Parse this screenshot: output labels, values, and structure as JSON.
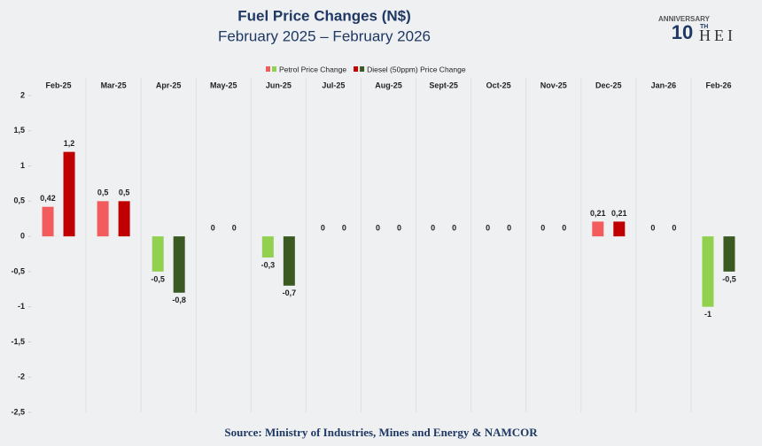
{
  "chart_data": {
    "type": "bar",
    "title": "Fuel Price Changes (N$)",
    "subtitle": "February 2025 – February 2026",
    "source": "Source: Ministry of Industries, Mines and Energy & NAMCOR",
    "categories": [
      "Feb-25",
      "Mar-25",
      "Apr-25",
      "May-25",
      "Jun-25",
      "Jul-25",
      "Aug-25",
      "Sept-25",
      "Oct-25",
      "Nov-25",
      "Dec-25",
      "Jan-26",
      "Feb-26"
    ],
    "series": [
      {
        "name": "Petrol Price Change",
        "color": "#f25c5c",
        "negative_color": "#92d050",
        "values": [
          0.42,
          0.5,
          -0.5,
          0,
          -0.3,
          0,
          0,
          0,
          0,
          0,
          0.21,
          0,
          -1
        ],
        "value_labels": [
          "0,42",
          "0,5",
          "-0,5",
          "0",
          "-0,3",
          "0",
          "0",
          "0",
          "0",
          "0",
          "0,21",
          "0",
          "-1"
        ]
      },
      {
        "name": "Diesel (50ppm) Price Change",
        "color": "#c00000",
        "negative_color": "#3a5a22",
        "values": [
          1.2,
          0.5,
          -0.8,
          0,
          -0.7,
          0,
          0,
          0,
          0,
          0,
          0.21,
          0,
          -0.5
        ],
        "value_labels": [
          "1,2",
          "0,5",
          "-0,8",
          "0",
          "-0,7",
          "0",
          "0",
          "0",
          "0",
          "0",
          "0,21",
          "0",
          "-0,5"
        ]
      }
    ],
    "ylim": [
      -2.5,
      2
    ],
    "yticks": [
      2,
      {
        "value": 1.5,
        "label": "1,5"
      },
      1,
      {
        "value": 0.5,
        "label": "0,5"
      },
      0,
      {
        "value": -0.5,
        "label": "-0,5"
      },
      -1,
      {
        "value": -1.5,
        "label": "-1,5"
      },
      -2,
      {
        "value": -2.5,
        "label": "-2,5"
      }
    ],
    "grid": false,
    "legend": "top"
  },
  "logo": {
    "arc": "ANNIVERSARY",
    "number": "10",
    "suffix": "TH",
    "text": "HEI"
  }
}
